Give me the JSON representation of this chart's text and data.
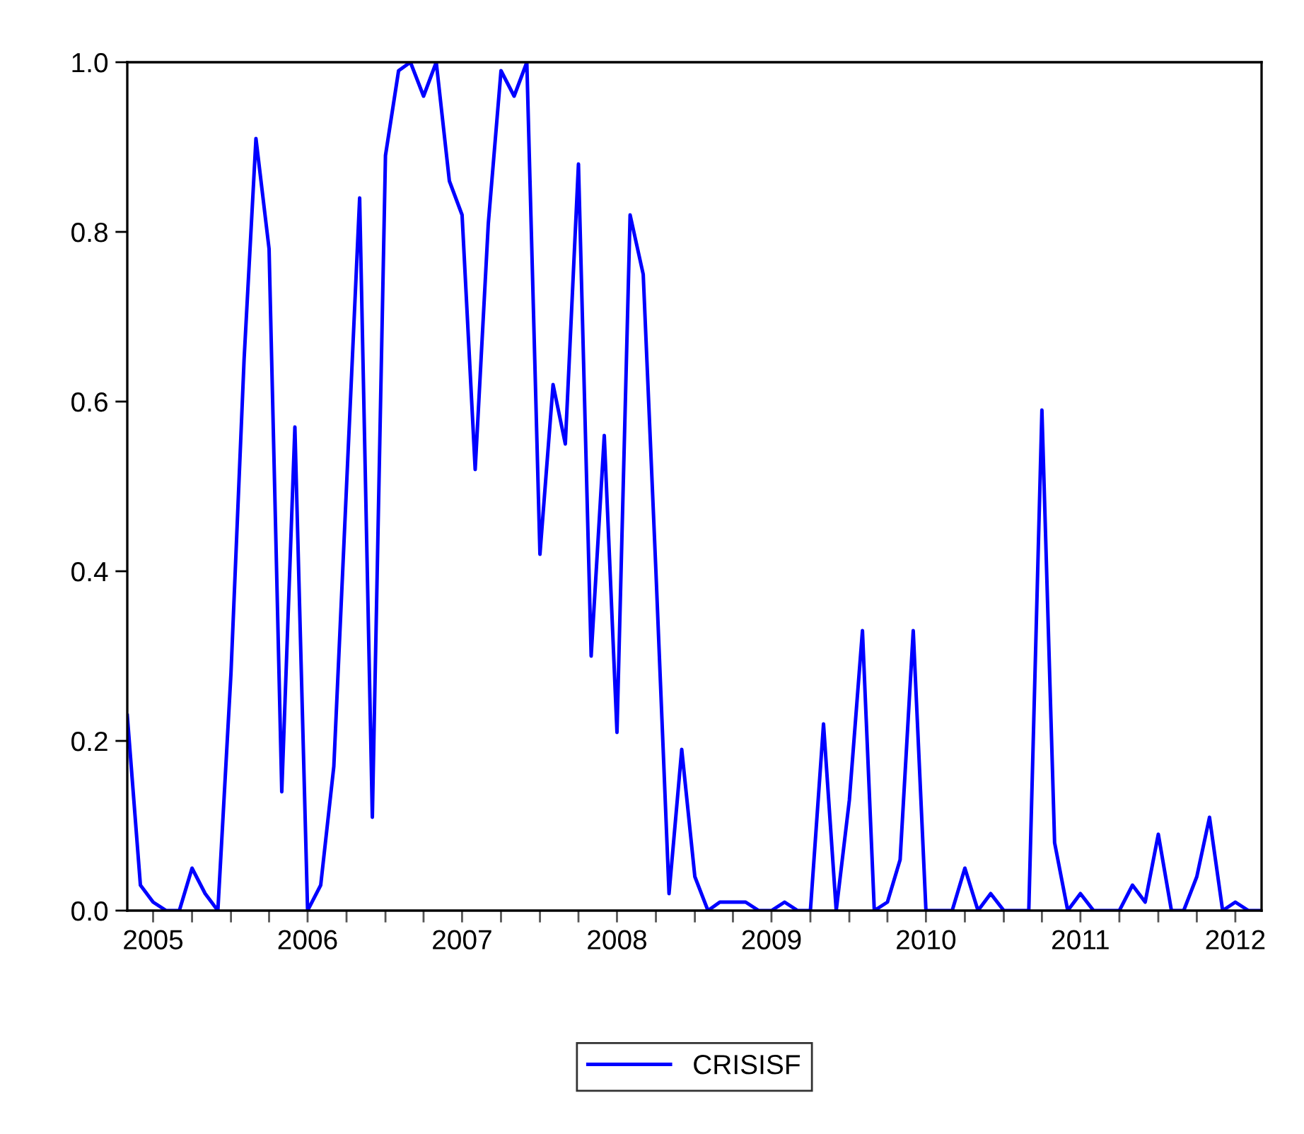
{
  "chart_data": {
    "type": "line",
    "x": [
      "2005-05",
      "2005-06",
      "2005-07",
      "2005-08",
      "2005-09",
      "2005-10",
      "2005-11",
      "2005-12",
      "2006-01",
      "2006-02",
      "2006-03",
      "2006-04",
      "2006-05",
      "2006-06",
      "2006-07",
      "2006-08",
      "2006-09",
      "2006-10",
      "2006-11",
      "2006-12",
      "2007-01",
      "2007-02",
      "2007-03",
      "2007-04",
      "2007-05",
      "2007-06",
      "2007-07",
      "2007-08",
      "2007-09",
      "2007-10",
      "2007-11",
      "2007-12",
      "2008-01",
      "2008-02",
      "2008-03",
      "2008-04",
      "2008-05",
      "2008-06",
      "2008-07",
      "2008-08",
      "2008-09",
      "2008-10",
      "2008-11",
      "2008-12",
      "2009-01",
      "2009-02",
      "2009-03",
      "2009-04",
      "2009-05",
      "2009-06",
      "2009-07",
      "2009-08",
      "2009-09",
      "2009-10",
      "2009-11",
      "2009-12",
      "2010-01",
      "2010-02",
      "2010-03",
      "2010-04",
      "2010-05",
      "2010-06",
      "2010-07",
      "2010-08",
      "2010-09",
      "2010-10",
      "2010-11",
      "2010-12",
      "2011-01",
      "2011-02",
      "2011-03",
      "2011-04",
      "2011-05",
      "2011-06",
      "2011-07",
      "2011-08",
      "2011-09",
      "2011-10",
      "2011-11",
      "2011-12",
      "2012-01",
      "2012-02",
      "2012-03",
      "2012-04",
      "2012-05",
      "2012-06",
      "2012-07",
      "2012-08",
      "2012-09"
    ],
    "series": [
      {
        "name": "CRISISF",
        "color": "#0000ff",
        "values": [
          0.23,
          0.03,
          0.01,
          0.0,
          0.0,
          0.05,
          0.02,
          0.0,
          0.28,
          0.65,
          0.91,
          0.78,
          0.14,
          0.57,
          0.0,
          0.03,
          0.17,
          0.5,
          0.84,
          0.11,
          0.89,
          0.99,
          1.0,
          0.96,
          1.0,
          0.86,
          0.82,
          0.52,
          0.81,
          0.99,
          0.96,
          1.0,
          0.42,
          0.62,
          0.55,
          0.88,
          0.3,
          0.56,
          0.21,
          0.82,
          0.75,
          0.4,
          0.02,
          0.19,
          0.04,
          0.0,
          0.01,
          0.01,
          0.01,
          0.0,
          0.0,
          0.01,
          0.0,
          0.0,
          0.22,
          0.0,
          0.13,
          0.33,
          0.0,
          0.01,
          0.06,
          0.33,
          0.0,
          0.0,
          0.0,
          0.05,
          0.0,
          0.02,
          0.0,
          0.0,
          0.0,
          0.59,
          0.08,
          0.0,
          0.02,
          0.0,
          0.0,
          0.0,
          0.03,
          0.01,
          0.09,
          0.0,
          0.0,
          0.04,
          0.11,
          0.0,
          0.01,
          0.0,
          0.0
        ]
      }
    ],
    "xlim": [
      "2005-05",
      "2012-09"
    ],
    "xticks": [
      {
        "value": "2005-07",
        "label": "2005"
      },
      {
        "value": "2006-07",
        "label": "2006"
      },
      {
        "value": "2007-07",
        "label": "2007"
      },
      {
        "value": "2008-07",
        "label": "2008"
      },
      {
        "value": "2009-07",
        "label": "2009"
      },
      {
        "value": "2010-07",
        "label": "2010"
      },
      {
        "value": "2011-07",
        "label": "2011"
      },
      {
        "value": "2012-07",
        "label": "2012"
      },
      {
        "value": "2005-10",
        "label": null
      },
      {
        "value": "2006-01",
        "label": null
      },
      {
        "value": "2006-04",
        "label": null
      },
      {
        "value": "2006-10",
        "label": null
      },
      {
        "value": "2007-01",
        "label": null
      },
      {
        "value": "2007-04",
        "label": null
      },
      {
        "value": "2007-10",
        "label": null
      },
      {
        "value": "2008-01",
        "label": null
      },
      {
        "value": "2008-04",
        "label": null
      },
      {
        "value": "2008-10",
        "label": null
      },
      {
        "value": "2009-01",
        "label": null
      },
      {
        "value": "2009-04",
        "label": null
      },
      {
        "value": "2009-10",
        "label": null
      },
      {
        "value": "2010-01",
        "label": null
      },
      {
        "value": "2010-04",
        "label": null
      },
      {
        "value": "2010-10",
        "label": null
      },
      {
        "value": "2011-01",
        "label": null
      },
      {
        "value": "2011-04",
        "label": null
      },
      {
        "value": "2011-10",
        "label": null
      },
      {
        "value": "2012-01",
        "label": null
      },
      {
        "value": "2012-04",
        "label": null
      }
    ],
    "ylim": [
      0,
      1
    ],
    "yticks": [
      {
        "value": 0,
        "label": "0.0"
      },
      {
        "value": 0.2,
        "label": "0.2"
      },
      {
        "value": 0.4,
        "label": "0.4"
      },
      {
        "value": 0.6,
        "label": "0.6"
      },
      {
        "value": 0.8,
        "label": "0.8"
      },
      {
        "value": 1,
        "label": "1.0"
      }
    ],
    "grid": false,
    "legend": "bottom",
    "line_style": "solid",
    "marker": "none"
  }
}
